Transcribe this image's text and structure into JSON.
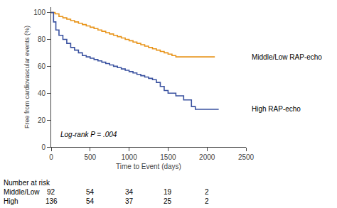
{
  "chart_data": {
    "type": "step",
    "x_label": "Time to Event (days)",
    "y_label": "Free from cardiovascular events (%)",
    "annotation": "Log-rank P = .004",
    "series": [
      {
        "name": "Middle/Low RAP-echo",
        "color": "#E8941A",
        "x": [
          0,
          50,
          100,
          150,
          200,
          250,
          300,
          350,
          400,
          450,
          500,
          550,
          600,
          650,
          700,
          750,
          800,
          850,
          900,
          950,
          1000,
          1050,
          1100,
          1150,
          1200,
          1250,
          1300,
          1350,
          1400,
          1450,
          1500,
          1550,
          1600,
          1650,
          1700,
          1750,
          1800,
          1850,
          1900,
          1950,
          2000,
          2050,
          2100
        ],
        "values": [
          100,
          99,
          97,
          96,
          95,
          94,
          93,
          92,
          91,
          90,
          89,
          88,
          87,
          86,
          85,
          84,
          83,
          82,
          81,
          80,
          79,
          78,
          77,
          76,
          75,
          74,
          73,
          72,
          71,
          70,
          69,
          68,
          67,
          67,
          67,
          67,
          67,
          67,
          67,
          67,
          67,
          67,
          67
        ]
      },
      {
        "name": "High RAP-echo",
        "color": "#3A52A0",
        "x": [
          0,
          30,
          60,
          100,
          150,
          200,
          250,
          300,
          350,
          400,
          450,
          500,
          550,
          600,
          650,
          700,
          750,
          800,
          850,
          900,
          950,
          1000,
          1050,
          1100,
          1150,
          1200,
          1250,
          1300,
          1350,
          1400,
          1450,
          1500,
          1600,
          1700,
          1800,
          1850,
          1900,
          1950,
          2000,
          2050,
          2100,
          2150
        ],
        "values": [
          100,
          93,
          87,
          83,
          80,
          77,
          74,
          72,
          70,
          68,
          67,
          66,
          65,
          64,
          63,
          62,
          61,
          60,
          59,
          58,
          57,
          56,
          55,
          54,
          53,
          52,
          51,
          50,
          48,
          45,
          42,
          40,
          38,
          35,
          30,
          28,
          28,
          28,
          28,
          28,
          28,
          28
        ]
      }
    ],
    "xlim": [
      0,
      2500
    ],
    "ylim": [
      0,
      104
    ],
    "xticks": [
      0,
      500,
      1000,
      1500,
      2000,
      2500
    ],
    "yticks": [
      0,
      20,
      40,
      60,
      80,
      100
    ],
    "grid": false,
    "risk_table": {
      "title": "Number at risk",
      "times": [
        0,
        500,
        1000,
        1500,
        2000
      ],
      "rows": [
        {
          "label": "Middle/Low",
          "values": [
            92,
            54,
            34,
            19,
            2
          ]
        },
        {
          "label": "High",
          "values": [
            136,
            54,
            37,
            25,
            2
          ]
        }
      ]
    }
  }
}
